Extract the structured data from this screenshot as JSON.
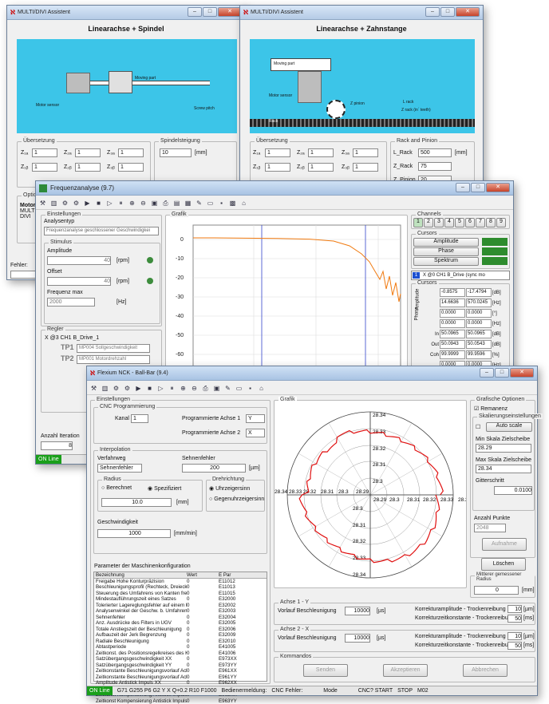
{
  "win1": {
    "title": "MULTI/DIVI Assistent",
    "heading": "Linearachse + Spindel",
    "ueber_legend": "Übersetzung",
    "spindel_legend": "Spindelsteigung",
    "spindel_value": "10",
    "spindel_unit": "[mm]",
    "z1a": "Z₁ₐ",
    "z1b": "Z₁ᵦ",
    "z2a": "Z₂ₐ",
    "z2b": "Z₂ᵦ",
    "z3a": "Z₃ₐ",
    "z3b": "Z₃ᵦ",
    "v": "1",
    "opt_label": "Optio",
    "motor_label": "Motor",
    "multi": "MULTI",
    "divi": "DIVI",
    "fehler": "Fehler:",
    "illus_motor": "Motor sensor",
    "illus_moving": "Moving part",
    "illus_screw": "Screw pitch"
  },
  "win2": {
    "title": "MULTI/DIVI Assistent",
    "heading": "Linearachse + Zahnstange",
    "ueber_legend": "Übersetzung",
    "rack_legend": "Rack and Pinion",
    "lrack": "L_Rack",
    "lrack_val": "500",
    "lrack_unit": "[mm]",
    "zrack": "Z_Rack",
    "zrack_val": "75",
    "zpinion": "Z_Pinion",
    "zpinion_val": "20",
    "v": "1",
    "illus_moving": "Moving part",
    "illus_motor": "Motor sensor",
    "illus_zpinion": "Z pinion",
    "illus_zrack": "Z rack (in´ teeth)",
    "illus_lrack": "L rack",
    "illus_rack": "Rack"
  },
  "win3": {
    "title": "Frequenzanalyse (9.7)",
    "einst": "Einstellungen",
    "analysentyp": "Analysentyp",
    "analysentyp_val": "Frequenzanalyse geschlossener Geschwindigkei",
    "stimulus": "Stimulus",
    "amplitude": "Amplitude",
    "amp_val": "40",
    "rpm": "[rpm]",
    "offset": "Offset",
    "off_val": "40",
    "freqmax": "Frequenz max",
    "freq_val": "2000",
    "hz": "[Hz]",
    "regler": "Regler",
    "tree_root": "X @3 CH1 B_Drive_1",
    "tp1": "TP1",
    "tp1_val": "MP004 Sollgeschwindigkeit",
    "tp2": "TP2",
    "tp2_val": "MP001 Motordrehzahl",
    "grafik": "Grafik",
    "channels": "Channels",
    "ch": [
      "1",
      "2",
      "3",
      "4",
      "5",
      "6",
      "7",
      "8",
      "9"
    ],
    "cursors": "Cursors",
    "btn_amp": "Amplitude",
    "btn_phase": "Phase",
    "btn_spek": "Spektrum",
    "selected": "X @0 CH1 B_Drive (sync mo",
    "cursor_head": "Cursors",
    "amp_lab": "Amplitude",
    "phase_lab": "Phase",
    "vals": [
      "-0.8575",
      "-17.4794",
      "14.6636",
      "570.0245",
      "0.0000",
      "0.0000",
      "0.0000",
      "0.0000",
      "50.0965",
      "50.0965",
      "50.0943",
      "50.0543",
      "99.9999",
      "99.9596",
      "0.0000",
      "0.0000"
    ],
    "units": [
      "[dB]",
      "[Hz]",
      "[°]",
      "[Hz]",
      "[dB]",
      "[dB]",
      "[%]",
      "[Hz]"
    ],
    "rowlab": [
      "In",
      "Out",
      "Coh",
      ""
    ],
    "spektrum_side": "Spektrumfrühfunktion",
    "anzahl": "Anzahl Iteration",
    "anzahl_val": "8",
    "online": "ON Line"
  },
  "win4": {
    "title": "Flexium NCK - Ball-Bar (9.4)",
    "einst": "Einstellungen",
    "cnc": "CNC Programmierung",
    "kanal": "Kanal",
    "kanal_val": "1",
    "prog1": "Programmierte Achse 1",
    "prog1_val": "Y",
    "prog2": "Programmierte Achse 2",
    "prog2_val": "X",
    "interp": "Interpolation",
    "verfahrweg": "Verfahrweg",
    "verf_val": "Sehnenfehler",
    "sehnen": "Sehnenfehler",
    "sehnen_val": "200",
    "um": "[µm]",
    "radius": "Radius",
    "berechnet": "Berechnet",
    "spezifiziert": "Spezifiziert",
    "radius_val": "10.0",
    "mm": "[mm]",
    "dreh": "Drehrichtung",
    "uhr": "Uhrzeigersinn",
    "gegen": "Gegenuhrzeigersinn",
    "geschw": "Geschwindigkeit",
    "geschw_val": "1000",
    "mmmin": "[mm/min]",
    "param": "Parameter der Maschinenkonfiguration",
    "ph": [
      "Bezeichnung",
      "Wert",
      "E Par"
    ],
    "params": [
      [
        "Freigabe Hohe Konturpräzision",
        "0",
        "E11012"
      ],
      [
        "Beschleunigungsprofil (Rechteck, Dreieck, Jerk)",
        "0",
        "E11013"
      ],
      [
        "Steuerung des Umfahrens von Kanten freigegeben",
        "0",
        "E11015"
      ],
      [
        "Mindestauflührungszeit eines Satzes",
        "0",
        "E32000"
      ],
      [
        "Tolerierter Lagereglungsfehler auf einem Kreis",
        "0",
        "E32002"
      ],
      [
        "Analysenwinkel der Geschw. b. Umfahren v. Ecken",
        "0",
        "E32003"
      ],
      [
        "Sehnenfehler",
        "0",
        "E32004"
      ],
      [
        "Anz. Ausdrücke des Filters in UGV",
        "0",
        "E32005"
      ],
      [
        "Totale Anstiegszeit der Beschleunigung",
        "0",
        "E32006"
      ],
      [
        "Aufbauzeit der Jerk Begrenzung",
        "0",
        "E32009"
      ],
      [
        "Radiale Beschleunigung",
        "0",
        "E32010"
      ],
      [
        "Abtastperiode",
        "0",
        "E41005"
      ],
      [
        "Zeitkonst. des Positionsregelkreises des Kanals",
        "0",
        "E41006"
      ],
      [
        "Satzübergangsgeschwindigkeit XX",
        "0",
        "E973XX"
      ],
      [
        "Satzübergangsgeschwindigkeit YY",
        "0",
        "E973YY"
      ],
      [
        "Zeitkonstante Beschleunigungsvorlauf Achse XX",
        "0",
        "E961XX"
      ],
      [
        "Zeitkonstante Beschleunigungsvorlauf Achse YY",
        "0",
        "E961YY"
      ],
      [
        "Amplitude Antistick Impuls XX",
        "0",
        "E962XX"
      ],
      [
        "Amplitude Antistick Impuls YY",
        "0",
        "E962YY"
      ],
      [
        "Zeitkonst Kompensierung Antistick Impuls XX",
        "0",
        "E963XX"
      ],
      [
        "Zeitkonst Kompensierung Antistick Impuls YY",
        "0",
        "E963YY"
      ]
    ],
    "grafik": "Grafik",
    "grafopt": "Grafische Optionen",
    "remanenz": "Remanenz",
    "skala": "Skalierungseinstellungen",
    "autoscale": "Auto scale",
    "min_lab": "Min Skala Zielscheibe",
    "min_val": "28.29",
    "max_lab": "Max Skala Zielscheibe",
    "max_val": "28.34",
    "gitter": "Gitterschritt",
    "gitter_val": "0.0100",
    "anzahl": "Anzahl Punkte",
    "anzahl_val": "2048",
    "aufnahme": "Aufnahme",
    "loeschen": "Löschen",
    "mittlerer": "Mittlerer gemessener Radius",
    "mittlerer_val": "0",
    "mittlerer_unit": "[mm]",
    "ring_labels": [
      "28.34",
      "28.33",
      "28.32",
      "28.31",
      "28.3",
      "28.29"
    ],
    "h_labels": [
      "28.34",
      "28.33",
      "28.32",
      "28.31",
      "28.3",
      "28.29",
      "28.29",
      "28.3",
      "28.31",
      "28.32",
      "28.33",
      "28.34"
    ],
    "achse1": "Achse 1 - Y",
    "achse2": "Achse 2 - X",
    "vorlauf": "Vorlauf Beschleunigung",
    "vorlauf_val": "10000",
    "us": "[µs]",
    "korramp": "Korrekturamplitude - Trockenreibung",
    "korramp_val": "10",
    "korrzeit": "Korrekturzeitkonstante - Trockenreibung",
    "korrzeit_val": "50",
    "ms": "[ms]",
    "kommandos": "Kommandos",
    "senden": "Senden",
    "akzeptieren": "Akzeptieren",
    "abbrechen": "Abbrechen",
    "status": [
      "ON Line",
      "G71 G255 P6 G2 Y X Q+0.2 R10 F1000",
      "Bedienermeldung:",
      "CNC Fehler:",
      "Mode",
      "CNC? START",
      "STOP",
      "M02"
    ]
  }
}
